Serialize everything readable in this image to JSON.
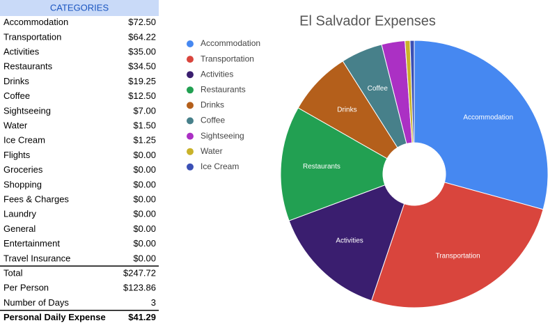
{
  "table": {
    "header": "CATEGORIES",
    "rows": [
      [
        "Accommodation",
        "$72.50"
      ],
      [
        "Transportation",
        "$64.22"
      ],
      [
        "Activities",
        "$35.00"
      ],
      [
        "Restaurants",
        "$34.50"
      ],
      [
        "Drinks",
        "$19.25"
      ],
      [
        "Coffee",
        "$12.50"
      ],
      [
        "Sightseeing",
        "$7.00"
      ],
      [
        "Water",
        "$1.50"
      ],
      [
        "Ice Cream",
        "$1.25"
      ],
      [
        "Flights",
        "$0.00"
      ],
      [
        "Groceries",
        "$0.00"
      ],
      [
        "Shopping",
        "$0.00"
      ],
      [
        "Fees & Charges",
        "$0.00"
      ],
      [
        "Laundry",
        "$0.00"
      ],
      [
        "General",
        "$0.00"
      ],
      [
        "Entertainment",
        "$0.00"
      ],
      [
        "Travel Insurance",
        "$0.00"
      ]
    ],
    "summary": [
      [
        "Total",
        "$247.72"
      ],
      [
        "Per Person",
        "$123.86"
      ],
      [
        "Number of Days",
        "3"
      ]
    ],
    "result": [
      "Personal Daily Expense",
      "$41.29"
    ]
  },
  "chart_data": {
    "type": "pie",
    "title": "El Salvador Expenses",
    "categories": [
      "Accommodation",
      "Transportation",
      "Activities",
      "Restaurants",
      "Drinks",
      "Coffee",
      "Sightseeing",
      "Water",
      "Ice Cream"
    ],
    "values": [
      72.5,
      64.22,
      35,
      34.5,
      19.25,
      12.5,
      7,
      1.5,
      1.25
    ],
    "colors": [
      "#4688f1",
      "#d9453d",
      "#3a1e6f",
      "#22a052",
      "#b45f1b",
      "#47808a",
      "#ab30c4",
      "#c9b22a",
      "#3b50b5"
    ],
    "legend": "left"
  }
}
